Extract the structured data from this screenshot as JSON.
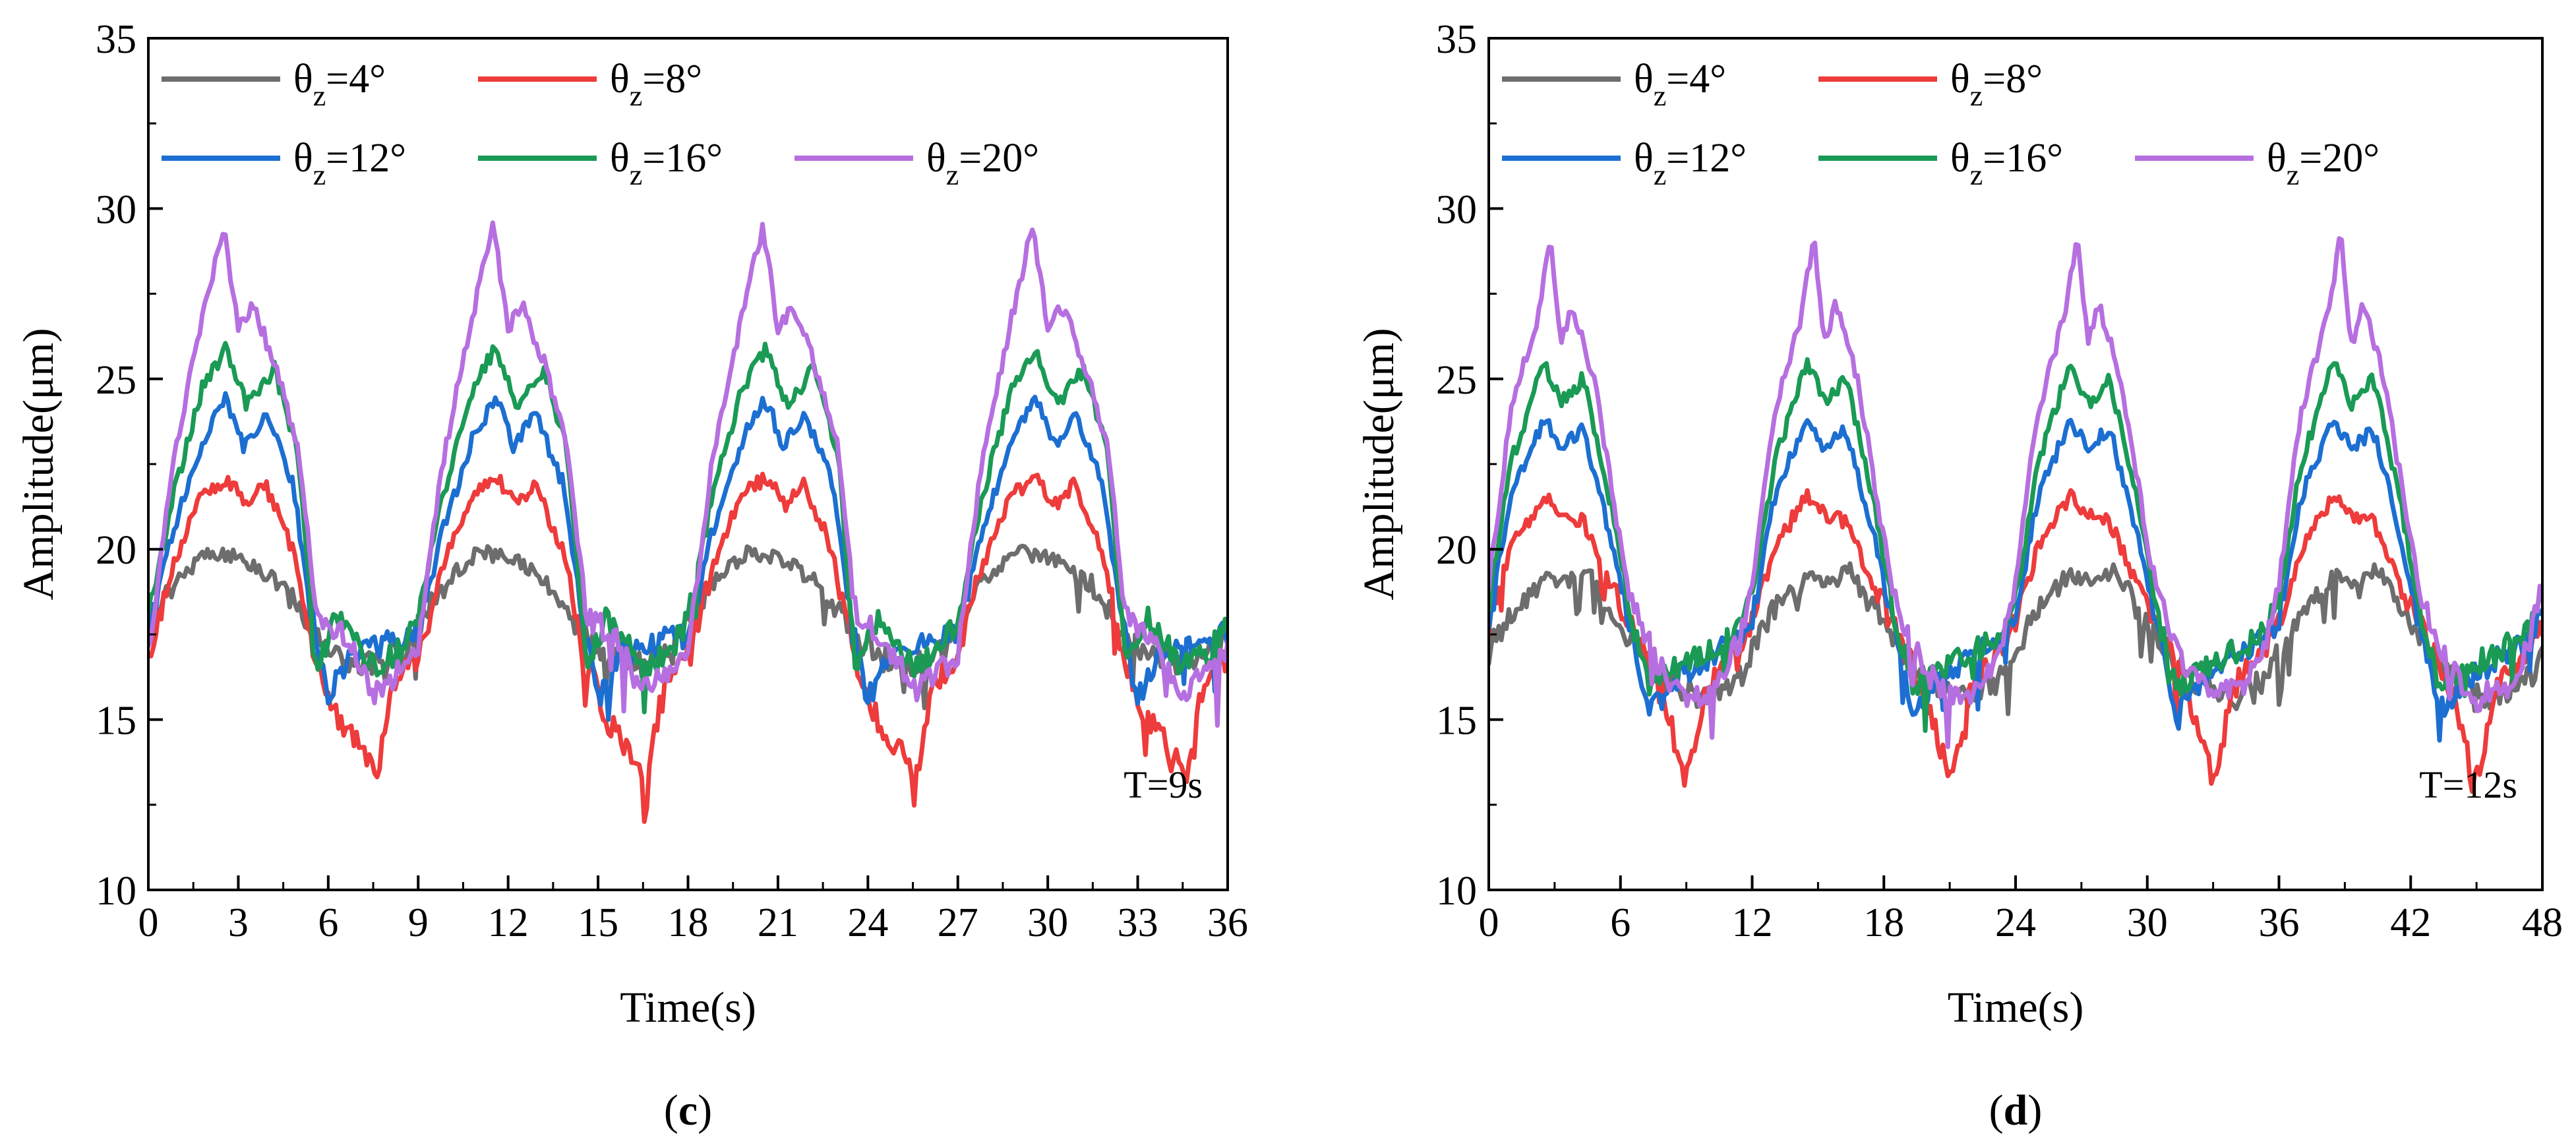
{
  "chart_data": [
    {
      "type": "line",
      "panel_label": "c",
      "xlabel": "Time(s)",
      "ylabel": "Amplitude(μm)",
      "xlim": [
        0,
        36
      ],
      "ylim": [
        10,
        35
      ],
      "xticks": [
        0,
        3,
        6,
        9,
        12,
        15,
        18,
        21,
        24,
        27,
        30,
        33,
        36
      ],
      "yticks": [
        10,
        15,
        20,
        25,
        30,
        35
      ],
      "period_s": 9,
      "annotation": "T=9s",
      "legend_position": "top-left",
      "series": [
        {
          "name": "θz=4°",
          "color": "#6d6d6d",
          "keypoints": [
            [
              0,
              17.8
            ],
            [
              0.8,
              19.0
            ],
            [
              2.0,
              19.9
            ],
            [
              3.0,
              19.8
            ],
            [
              4.5,
              18.9
            ],
            [
              5.5,
              17.5
            ],
            [
              6.5,
              16.8
            ],
            [
              7.5,
              16.6
            ],
            [
              8.5,
              17.0
            ],
            [
              9,
              17.8
            ]
          ]
        },
        {
          "name": "θz=8°",
          "color": "#ee3b3b",
          "keypoints": [
            [
              0,
              16.8
            ],
            [
              0.8,
              19.5
            ],
            [
              1.8,
              21.6
            ],
            [
              2.6,
              22.1
            ],
            [
              3.3,
              21.3
            ],
            [
              3.9,
              21.9
            ],
            [
              4.8,
              20.0
            ],
            [
              5.5,
              17.0
            ],
            [
              6.3,
              15.0
            ],
            [
              7.0,
              14.2
            ],
            [
              7.6,
              13.4
            ],
            [
              8.2,
              16.0
            ],
            [
              9,
              16.8
            ]
          ]
        },
        {
          "name": "θz=12°",
          "color": "#1c6fd1",
          "keypoints": [
            [
              0,
              17.5
            ],
            [
              0.8,
              20.5
            ],
            [
              1.8,
              23.2
            ],
            [
              2.6,
              24.4
            ],
            [
              3.2,
              23.0
            ],
            [
              3.9,
              24.0
            ],
            [
              4.8,
              22.0
            ],
            [
              5.5,
              17.8
            ],
            [
              6.0,
              15.6
            ],
            [
              6.8,
              17.0
            ],
            [
              7.8,
              17.2
            ],
            [
              8.5,
              17.4
            ],
            [
              9,
              17.5
            ]
          ]
        },
        {
          "name": "θz=16°",
          "color": "#1a9a55",
          "keypoints": [
            [
              0,
              18.0
            ],
            [
              0.8,
              21.5
            ],
            [
              1.8,
              24.7
            ],
            [
              2.6,
              25.9
            ],
            [
              3.3,
              24.2
            ],
            [
              4.2,
              25.3
            ],
            [
              5.0,
              22.8
            ],
            [
              5.6,
              16.5
            ],
            [
              6.3,
              18.0
            ],
            [
              7.5,
              16.5
            ],
            [
              8.4,
              17.0
            ],
            [
              9,
              18.0
            ]
          ]
        },
        {
          "name": "θz=20°",
          "color": "#b66fe0",
          "keypoints": [
            [
              0,
              17.0
            ],
            [
              0.8,
              22.5
            ],
            [
              1.8,
              26.8
            ],
            [
              2.5,
              29.5
            ],
            [
              3.0,
              26.5
            ],
            [
              3.5,
              27.1
            ],
            [
              4.2,
              25.5
            ],
            [
              5.0,
              23.0
            ],
            [
              5.6,
              18.0
            ],
            [
              6.5,
              17.5
            ],
            [
              7.5,
              15.8
            ],
            [
              8.5,
              16.5
            ],
            [
              9,
              17.0
            ]
          ]
        }
      ]
    },
    {
      "type": "line",
      "panel_label": "d",
      "xlabel": "Time(s)",
      "ylabel": "Amplitude(μm)",
      "xlim": [
        0,
        48
      ],
      "ylim": [
        10,
        35
      ],
      "xticks": [
        0,
        6,
        12,
        18,
        24,
        30,
        36,
        42,
        48
      ],
      "yticks": [
        10,
        15,
        20,
        25,
        30,
        35
      ],
      "period_s": 12,
      "annotation": "T=12s",
      "legend_position": "top-left",
      "series": [
        {
          "name": "θz=4°",
          "color": "#6d6d6d",
          "keypoints": [
            [
              0,
              17.0
            ],
            [
              1.0,
              18.2
            ],
            [
              2.5,
              19.2
            ],
            [
              3.5,
              19.0
            ],
            [
              4.5,
              19.4
            ],
            [
              5.5,
              18.3
            ],
            [
              7.0,
              16.8
            ],
            [
              8.5,
              15.9
            ],
            [
              10,
              15.6
            ],
            [
              11.5,
              16.3
            ],
            [
              12,
              17.0
            ]
          ]
        },
        {
          "name": "θz=8°",
          "color": "#ee3b3b",
          "keypoints": [
            [
              0,
              17.8
            ],
            [
              1.0,
              20.0
            ],
            [
              2.5,
              21.6
            ],
            [
              3.3,
              21.0
            ],
            [
              4.3,
              20.8
            ],
            [
              5.5,
              19.0
            ],
            [
              7.0,
              17.0
            ],
            [
              8.0,
              15.5
            ],
            [
              9.0,
              13.2
            ],
            [
              10.0,
              16.0
            ],
            [
              11.2,
              17.0
            ],
            [
              12,
              17.8
            ]
          ]
        },
        {
          "name": "θz=12°",
          "color": "#1c6fd1",
          "keypoints": [
            [
              0,
              18.0
            ],
            [
              1.0,
              21.5
            ],
            [
              2.5,
              23.8
            ],
            [
              3.3,
              23.0
            ],
            [
              4.3,
              23.5
            ],
            [
              5.5,
              20.5
            ],
            [
              6.5,
              17.5
            ],
            [
              7.3,
              15.2
            ],
            [
              8.5,
              16.2
            ],
            [
              10.0,
              16.8
            ],
            [
              11.2,
              17.3
            ],
            [
              12,
              18.0
            ]
          ]
        },
        {
          "name": "θz=16°",
          "color": "#1a9a55",
          "keypoints": [
            [
              0,
              18.5
            ],
            [
              1.0,
              22.5
            ],
            [
              2.5,
              25.5
            ],
            [
              3.3,
              24.3
            ],
            [
              4.3,
              25.0
            ],
            [
              5.5,
              21.5
            ],
            [
              6.5,
              18.0
            ],
            [
              7.3,
              16.0
            ],
            [
              8.5,
              16.5
            ],
            [
              10.0,
              17.0
            ],
            [
              11.2,
              17.5
            ],
            [
              12,
              18.5
            ]
          ]
        },
        {
          "name": "θz=20°",
          "color": "#b66fe0",
          "keypoints": [
            [
              0,
              19.0
            ],
            [
              1.0,
              24.0
            ],
            [
              2.3,
              27.0
            ],
            [
              2.8,
              29.3
            ],
            [
              3.3,
              26.0
            ],
            [
              3.8,
              27.2
            ],
            [
              4.8,
              25.0
            ],
            [
              5.8,
              21.0
            ],
            [
              6.5,
              18.5
            ],
            [
              7.8,
              16.5
            ],
            [
              9.0,
              15.6
            ],
            [
              10.5,
              16.0
            ],
            [
              11.5,
              17.5
            ],
            [
              12,
              19.0
            ]
          ]
        }
      ]
    }
  ]
}
